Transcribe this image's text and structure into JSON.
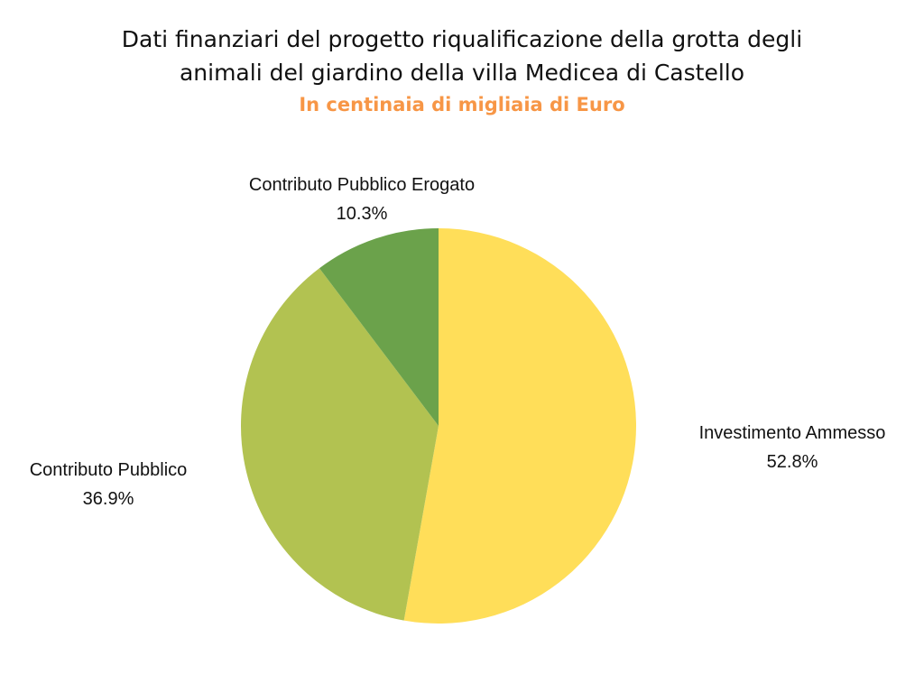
{
  "chart_data": {
    "type": "pie",
    "title_lines": [
      "Dati finanziari del progetto riqualificazione della grotta degli",
      "animali del giardino della villa Medicea di Castello"
    ],
    "subtitle": "In centinaia di migliaia di Euro",
    "subtitle_color": "#f79646",
    "start_angle_deg": 0,
    "direction": "clockwise",
    "slices": [
      {
        "label": "Investimento Ammesso",
        "value": 52.8,
        "display": "52.8%",
        "color": "#ffde59"
      },
      {
        "label": "Contributo Pubblico",
        "value": 36.9,
        "display": "36.9%",
        "color": "#b2c251"
      },
      {
        "label": "Contributo Pubblico Erogato",
        "value": 10.3,
        "display": "10.3%",
        "color": "#6ba24b"
      }
    ]
  }
}
